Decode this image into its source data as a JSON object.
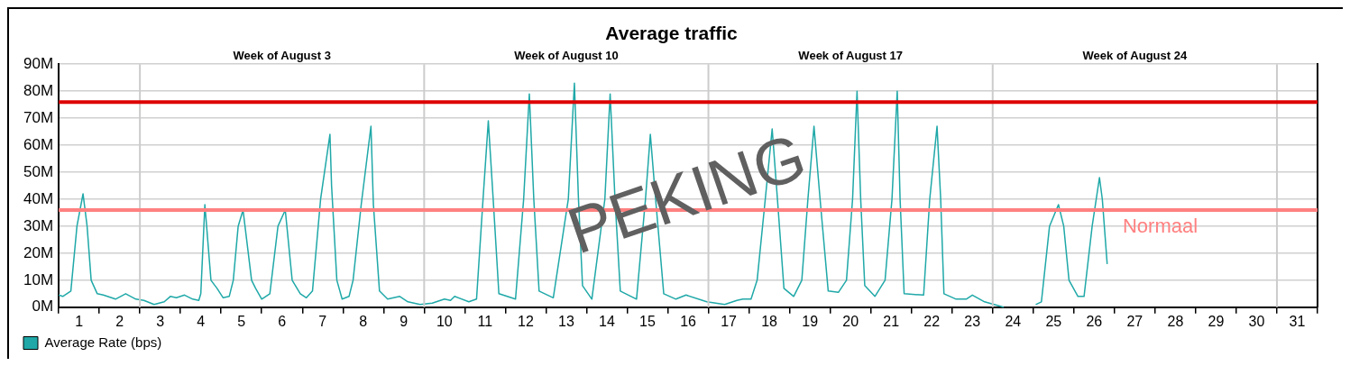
{
  "chart_data": {
    "type": "line",
    "title": "Average traffic",
    "x": [
      0,
      0.1,
      0.3,
      0.45,
      0.6,
      0.7,
      0.8,
      0.95,
      1.1,
      1.4,
      1.65,
      1.9,
      2.1,
      2.35,
      2.6,
      2.75,
      2.9,
      3.1,
      3.3,
      3.45,
      3.5,
      3.6,
      3.75,
      3.9,
      4.05,
      4.2,
      4.3,
      4.42,
      4.54,
      4.75,
      4.85,
      5.0,
      5.2,
      5.4,
      5.58,
      5.75,
      5.95,
      6.1,
      6.25,
      6.45,
      6.68,
      6.72,
      6.85,
      6.98,
      7.15,
      7.25,
      7.45,
      7.69,
      7.75,
      7.9,
      8.1,
      8.4,
      8.6,
      8.9,
      9.2,
      9.5,
      9.65,
      9.75,
      10.1,
      10.29,
      10.45,
      10.58,
      10.7,
      10.84,
      11.25,
      11.45,
      11.59,
      11.7,
      11.83,
      12.18,
      12.55,
      12.7,
      12.8,
      12.9,
      13.13,
      13.45,
      13.58,
      13.7,
      13.83,
      14.23,
      14.45,
      14.57,
      14.7,
      14.9,
      15.2,
      15.45,
      15.96,
      16.4,
      16.7,
      16.85,
      17.05,
      17.2,
      17.4,
      17.57,
      17.7,
      17.86,
      18.1,
      18.3,
      18.45,
      18.6,
      18.75,
      18.95,
      19.2,
      19.4,
      19.55,
      19.66,
      19.75,
      19.85,
      20.1,
      20.35,
      20.52,
      20.65,
      20.72,
      20.82,
      21.3,
      21.45,
      21.63,
      21.72,
      21.8,
      22.1,
      22.35,
      22.5,
      22.8,
      23.27,
      23.6,
      24.06,
      24.2,
      24.4,
      24.62,
      24.75,
      24.88,
      25.1,
      25.25,
      25.45,
      25.63,
      25.7,
      25.82
    ],
    "series": [
      {
        "name": "Average Rate (bps)",
        "color": "#20a8a8",
        "values": [
          4.5,
          4,
          6,
          30,
          42,
          30,
          10,
          5,
          4.5,
          3,
          5,
          3,
          2.5,
          1,
          2,
          4,
          3.5,
          4.5,
          3,
          2.5,
          5,
          38,
          10,
          7,
          3.5,
          4,
          10,
          30,
          36,
          10,
          7,
          3,
          5,
          30,
          36,
          10,
          5,
          3.5,
          6,
          40,
          64,
          45,
          10,
          3,
          4,
          10,
          38,
          67,
          38,
          6,
          3,
          4,
          2,
          1,
          1.5,
          3,
          2.5,
          4,
          2,
          3,
          40,
          69,
          40,
          5,
          3,
          40,
          79,
          40,
          6,
          3.5,
          40,
          83,
          40,
          8,
          3,
          40,
          79,
          40,
          6,
          3,
          40,
          64,
          40,
          5,
          3,
          4.5,
          2,
          1,
          2.5,
          3,
          3,
          10,
          40,
          66,
          40,
          7,
          4,
          10,
          40,
          67,
          40,
          6,
          5.5,
          10,
          40,
          80,
          40,
          8,
          4,
          10,
          40,
          80,
          40,
          5,
          4.5,
          40,
          67,
          40,
          5,
          3,
          3,
          4.5,
          2,
          0,
          null,
          1,
          2,
          30,
          38,
          30,
          10,
          4,
          4,
          30,
          48,
          40,
          16
        ]
      }
    ],
    "xlim": [
      0,
      31
    ],
    "xticks": [
      {
        "value": 0,
        "label": null
      },
      {
        "value": 0.5,
        "label": "1"
      },
      {
        "value": 1,
        "label": null
      },
      {
        "value": 1.5,
        "label": "2"
      },
      {
        "value": 2,
        "label": null
      },
      {
        "value": 2.5,
        "label": "3"
      },
      {
        "value": 3,
        "label": null
      },
      {
        "value": 3.5,
        "label": "4"
      },
      {
        "value": 4,
        "label": null
      },
      {
        "value": 4.5,
        "label": "5"
      },
      {
        "value": 5,
        "label": null
      },
      {
        "value": 5.5,
        "label": "6"
      },
      {
        "value": 6,
        "label": null
      },
      {
        "value": 6.5,
        "label": "7"
      },
      {
        "value": 7,
        "label": null
      },
      {
        "value": 7.5,
        "label": "8"
      },
      {
        "value": 8,
        "label": null
      },
      {
        "value": 8.5,
        "label": "9"
      },
      {
        "value": 9,
        "label": null
      },
      {
        "value": 9.5,
        "label": "10"
      },
      {
        "value": 10,
        "label": null
      },
      {
        "value": 10.5,
        "label": "11"
      },
      {
        "value": 11,
        "label": null
      },
      {
        "value": 11.5,
        "label": "12"
      },
      {
        "value": 12,
        "label": null
      },
      {
        "value": 12.5,
        "label": "13"
      },
      {
        "value": 13,
        "label": null
      },
      {
        "value": 13.5,
        "label": "14"
      },
      {
        "value": 14,
        "label": null
      },
      {
        "value": 14.5,
        "label": "15"
      },
      {
        "value": 15,
        "label": null
      },
      {
        "value": 15.5,
        "label": "16"
      },
      {
        "value": 16,
        "label": null
      },
      {
        "value": 16.5,
        "label": "17"
      },
      {
        "value": 17,
        "label": null
      },
      {
        "value": 17.5,
        "label": "18"
      },
      {
        "value": 18,
        "label": null
      },
      {
        "value": 18.5,
        "label": "19"
      },
      {
        "value": 19,
        "label": null
      },
      {
        "value": 19.5,
        "label": "20"
      },
      {
        "value": 20,
        "label": null
      },
      {
        "value": 20.5,
        "label": "21"
      },
      {
        "value": 21,
        "label": null
      },
      {
        "value": 21.5,
        "label": "22"
      },
      {
        "value": 22,
        "label": null
      },
      {
        "value": 22.5,
        "label": "23"
      },
      {
        "value": 23,
        "label": null
      },
      {
        "value": 23.5,
        "label": "24"
      },
      {
        "value": 24,
        "label": null
      },
      {
        "value": 24.5,
        "label": "25"
      },
      {
        "value": 25,
        "label": null
      },
      {
        "value": 25.5,
        "label": "26"
      },
      {
        "value": 26,
        "label": null
      },
      {
        "value": 26.5,
        "label": "27"
      },
      {
        "value": 27,
        "label": null
      },
      {
        "value": 27.5,
        "label": "28"
      },
      {
        "value": 28,
        "label": null
      },
      {
        "value": 28.5,
        "label": "29"
      },
      {
        "value": 29,
        "label": null
      },
      {
        "value": 29.5,
        "label": "30"
      },
      {
        "value": 30,
        "label": null
      },
      {
        "value": 30.5,
        "label": "31"
      },
      {
        "value": 31,
        "label": null
      }
    ],
    "ylim": [
      0,
      90
    ],
    "yticks": [
      {
        "value": 0,
        "label": "0M"
      },
      {
        "value": 10,
        "label": "10M"
      },
      {
        "value": 20,
        "label": "20M"
      },
      {
        "value": 30,
        "label": "30M"
      },
      {
        "value": 40,
        "label": "40M"
      },
      {
        "value": 50,
        "label": "50M"
      },
      {
        "value": 60,
        "label": "60M"
      },
      {
        "value": 70,
        "label": "70M"
      },
      {
        "value": 80,
        "label": "80M"
      },
      {
        "value": 90,
        "label": "90M"
      }
    ],
    "ref_lines": [
      {
        "axis": "x",
        "value": 2,
        "color": "#cccccc"
      },
      {
        "axis": "x",
        "value": 9,
        "color": "#cccccc"
      },
      {
        "axis": "x",
        "value": 16,
        "color": "#cccccc"
      },
      {
        "axis": "x",
        "value": 23,
        "color": "#cccccc"
      },
      {
        "axis": "x",
        "value": 30,
        "color": "#cccccc"
      },
      {
        "axis": "y",
        "value": 76,
        "color": "#dd0000"
      },
      {
        "axis": "y",
        "value": 36,
        "label": "Normaal",
        "color": "#ff8080"
      }
    ],
    "annotations": [
      "PEKING",
      "Week of August 3",
      "Week of August 10",
      "Week of August 17",
      "Week of August 24"
    ],
    "grid": "y",
    "legend": "bottom left",
    "marker": "none",
    "line_style": "solid"
  }
}
